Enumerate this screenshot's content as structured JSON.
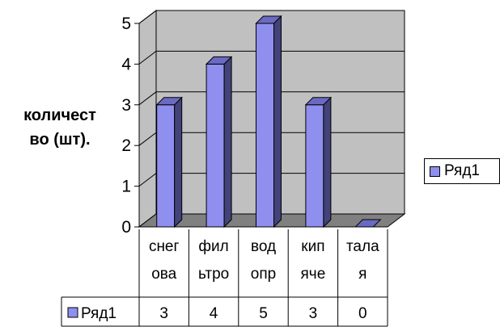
{
  "chart_data": {
    "type": "bar",
    "categories": [
      "снег ова",
      "фил ьтро",
      "вод опр",
      "кип яче",
      "тала я"
    ],
    "category_lines": [
      [
        "снег",
        "ова"
      ],
      [
        "фил",
        "ьтро"
      ],
      [
        "вод",
        "опр"
      ],
      [
        "кип",
        "яче"
      ],
      [
        "тала",
        "я"
      ]
    ],
    "series": [
      {
        "name": "Ряд1",
        "values": [
          3,
          4,
          5,
          3,
          0
        ]
      }
    ],
    "ylabel": "количест во (шт).",
    "ylabel_lines": [
      "количест",
      "во (шт)."
    ],
    "ylim": [
      0,
      5
    ],
    "yticks": [
      0,
      1,
      2,
      3,
      4,
      5
    ],
    "grid": true,
    "legend_position": "right",
    "data_table": true,
    "colors": {
      "bar_front": "#8f8fef",
      "bar_side": "#43437a",
      "bar_top": "#6a6ac2",
      "wall": "#c0c0c0",
      "floor": "#808080"
    }
  }
}
